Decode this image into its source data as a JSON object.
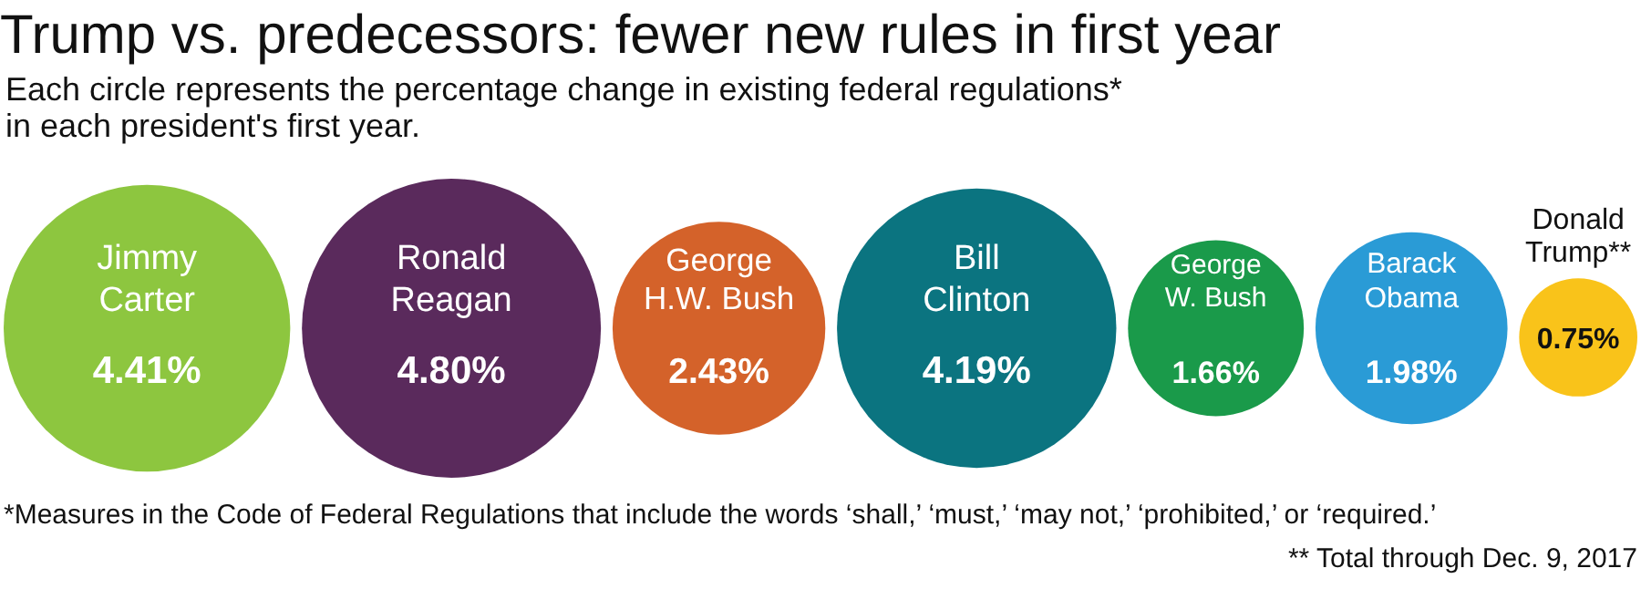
{
  "chart_data": {
    "type": "other",
    "title": "Trump vs. predecessors: fewer new rules in first year",
    "subtitle": "Each circle represents the percentage change in existing federal regulations*\nin each president's first year.",
    "categories": [
      "Jimmy Carter",
      "Ronald Reagan",
      "George H.W. Bush",
      "Bill Clinton",
      "George W. Bush",
      "Barack Obama",
      "Donald Trump**"
    ],
    "values": [
      4.41,
      4.8,
      2.43,
      4.19,
      1.66,
      1.98,
      0.75
    ],
    "value_labels": [
      "4.41%",
      "4.80%",
      "2.43%",
      "4.19%",
      "1.66%",
      "1.98%",
      "0.75%"
    ],
    "colors": [
      "#8dc63f",
      "#5a2a5c",
      "#d4622a",
      "#0b7480",
      "#1a9a4a",
      "#2a9bd6",
      "#f9c31a"
    ],
    "annotations": [
      "*Measures in the Code of Federal Regulations that include the words ‘shall,’ ‘must,’ ‘may not,’ ‘prohibited,’ or ‘required.’",
      "** Total through Dec. 9, 2017"
    ]
  }
}
